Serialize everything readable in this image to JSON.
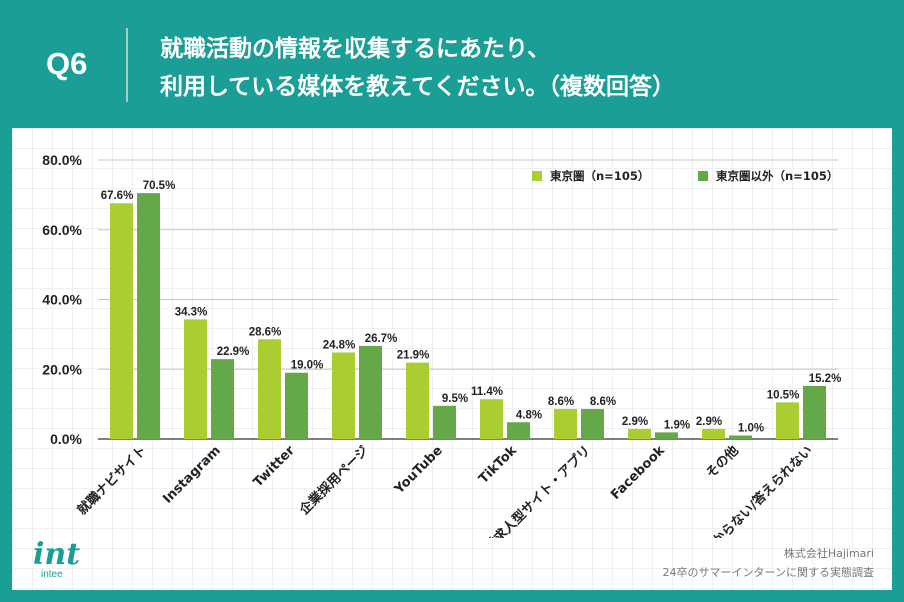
{
  "header": {
    "question_number": "Q6",
    "title_line1": "就職活動の情報を収集するにあたり、",
    "title_line2": "利用している媒体を教えてください。（複数回答）"
  },
  "colors": {
    "background": "#1a9e95",
    "series1": "#aacd32",
    "series2": "#64a84a"
  },
  "chart_data": {
    "type": "bar",
    "categories": [
      "就職ナビサイト",
      "Instagram",
      "Twitter",
      "企業採用ページ",
      "YouTube",
      "TikTok",
      "逆求人型サイト・アプリ",
      "Facebook",
      "その他",
      "わからない/答えられない"
    ],
    "series": [
      {
        "name": "東京圏（n=105）",
        "values": [
          67.6,
          34.3,
          28.6,
          24.8,
          21.9,
          11.4,
          8.6,
          2.9,
          2.9,
          10.5
        ],
        "labels": [
          "67.6%",
          "34.3%",
          "28.6%",
          "24.8%",
          "21.9%",
          "11.4%",
          "8.6%",
          "2.9%",
          "2.9%",
          "10.5%"
        ]
      },
      {
        "name": "東京圏以外（n=105）",
        "values": [
          70.5,
          22.9,
          19.0,
          26.7,
          9.5,
          4.8,
          8.6,
          1.9,
          1.0,
          15.2
        ],
        "labels": [
          "70.5%",
          "22.9%",
          "19.0%",
          "26.7%",
          "9.5%",
          "4.8%",
          "8.6%",
          "1.9%",
          "1.0%",
          "15.2%"
        ]
      }
    ],
    "y_ticks": [
      0,
      20,
      40,
      60,
      80
    ],
    "y_tick_labels": [
      "0.0%",
      "20.0%",
      "40.0%",
      "60.0%",
      "80.0%"
    ],
    "ylim": [
      0,
      80
    ],
    "legend_position": "top-right",
    "gridlines": true
  },
  "footer": {
    "logo_text": "int",
    "logo_subtext": "intee",
    "company": "株式会社Hajimari",
    "survey": "24卒のサマーインターンに関する実態調査"
  }
}
